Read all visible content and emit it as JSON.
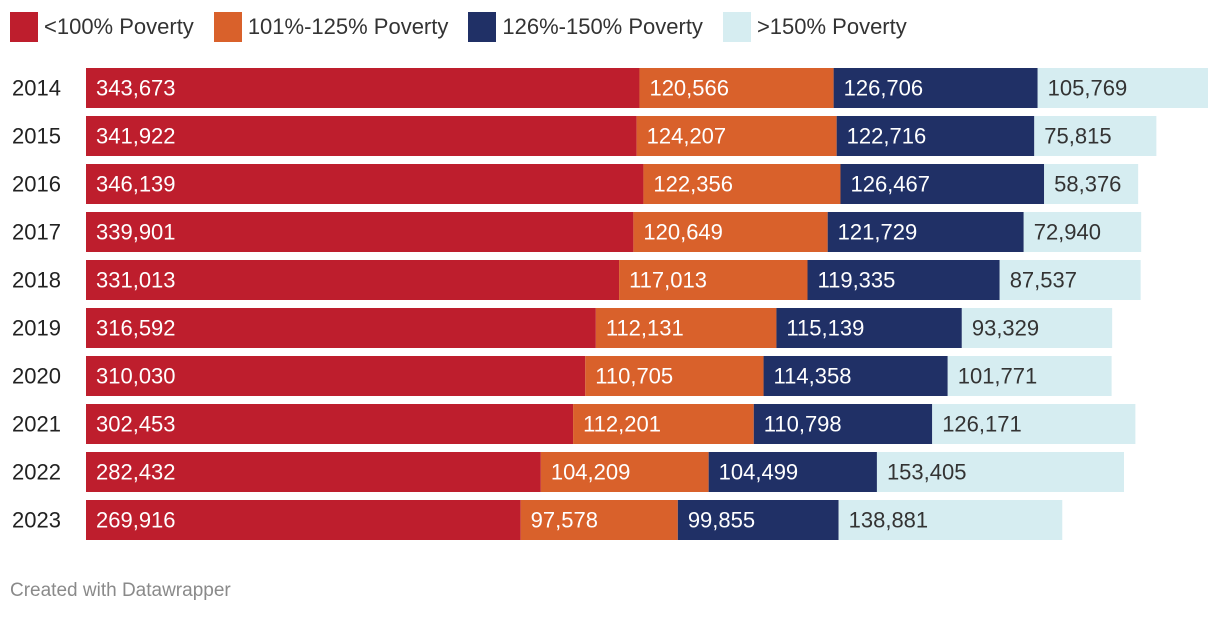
{
  "chart_data": {
    "type": "bar",
    "orientation": "horizontal",
    "stacked": true,
    "categories": [
      "2014",
      "2015",
      "2016",
      "2017",
      "2018",
      "2019",
      "2020",
      "2021",
      "2022",
      "2023"
    ],
    "series": [
      {
        "name": "<100% Poverty",
        "color": "#be1e2d",
        "label_color": "#ffffff",
        "values": [
          343673,
          341922,
          346139,
          339901,
          331013,
          316592,
          310030,
          302453,
          282432,
          269916
        ],
        "labels": [
          "343,673",
          "341,922",
          "346,139",
          "339,901",
          "331,013",
          "316,592",
          "310,030",
          "302,453",
          "282,432",
          "269,916"
        ]
      },
      {
        "name": "101%-125% Poverty",
        "color": "#d9612b",
        "label_color": "#ffffff",
        "values": [
          120566,
          124207,
          122356,
          120649,
          117013,
          112131,
          110705,
          112201,
          104209,
          97578
        ],
        "labels": [
          "120,566",
          "124,207",
          "122,356",
          "120,649",
          "117,013",
          "112,131",
          "110,705",
          "112,201",
          "104,209",
          "97,578"
        ]
      },
      {
        "name": "126%-150% Poverty",
        "color": "#203066",
        "label_color": "#ffffff",
        "values": [
          126706,
          122716,
          126467,
          121729,
          119335,
          115139,
          114358,
          110798,
          104499,
          99855
        ],
        "labels": [
          "126,706",
          "122,716",
          "126,467",
          "121,729",
          "119,335",
          "115,139",
          "114,358",
          "110,798",
          "104,499",
          "99,855"
        ]
      },
      {
        "name": ">150% Poverty",
        "color": "#d6edf1",
        "label_color": "#333333",
        "values": [
          105769,
          75815,
          58376,
          72940,
          87537,
          93329,
          101771,
          126171,
          153405,
          138881
        ],
        "labels": [
          "105,769",
          "75,815",
          "58,376",
          "72,940",
          "87,537",
          "93,329",
          "101,771",
          "126,171",
          "153,405",
          "138,881"
        ]
      }
    ],
    "xlim": [
      0,
      696714
    ],
    "legend_position": "top",
    "grid": false,
    "axis_labels": false
  },
  "footer": {
    "text": "Created with Datawrapper"
  }
}
